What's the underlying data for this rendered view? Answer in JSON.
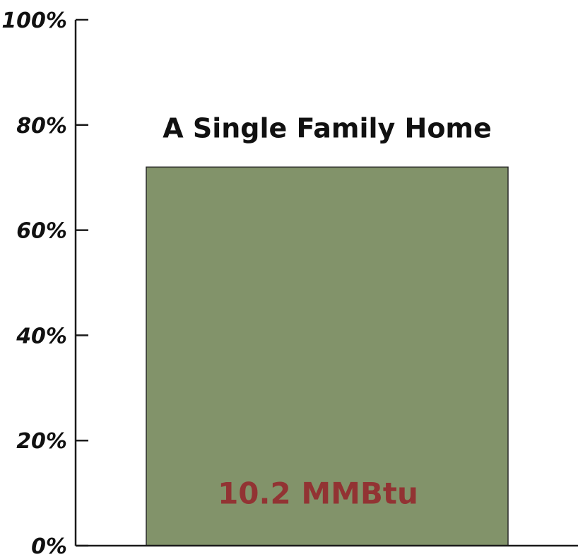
{
  "chart_data": {
    "type": "bar",
    "title": "",
    "xlabel": "",
    "ylabel": "",
    "ylim": [
      0,
      100
    ],
    "y_ticks": [
      {
        "value": 0,
        "label": "0%"
      },
      {
        "value": 20,
        "label": "20%"
      },
      {
        "value": 40,
        "label": "40%"
      },
      {
        "value": 60,
        "label": "60%"
      },
      {
        "value": 80,
        "label": "80%"
      },
      {
        "value": 100,
        "label": "100%"
      }
    ],
    "categories": [
      "A Single Family Home"
    ],
    "values": [
      72
    ],
    "data_labels": [
      "10.2 MMBtu"
    ],
    "grid": false,
    "legend": "none",
    "colors": {
      "bar_fill": "#82936a",
      "bar_stroke": "#2a2a2a",
      "axis": "#1a1a1a",
      "data_label": "#923333"
    }
  }
}
